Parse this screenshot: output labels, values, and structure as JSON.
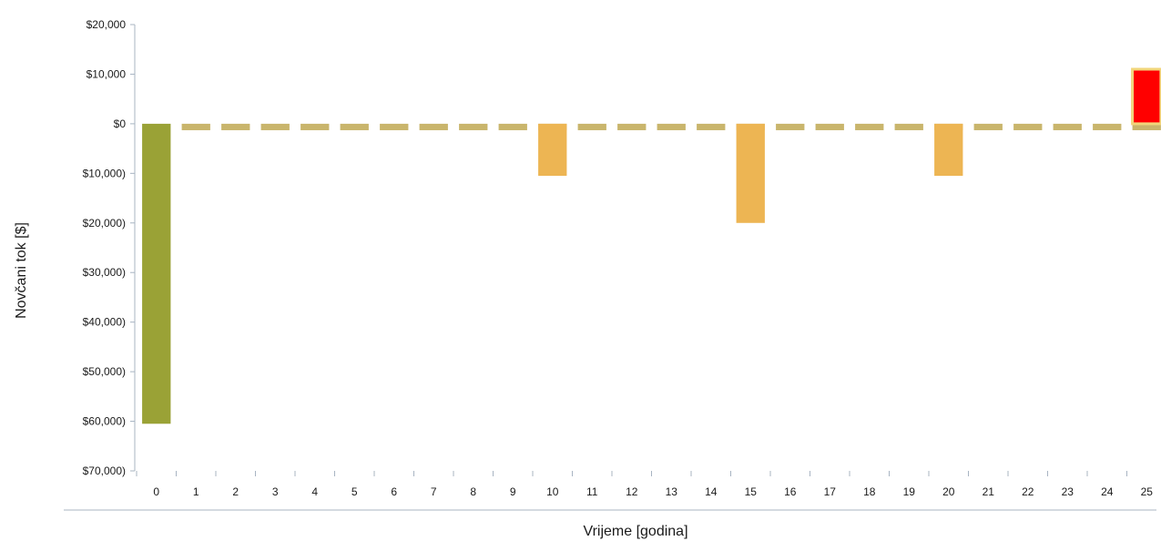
{
  "chart_data": {
    "type": "bar",
    "xlabel": "Vrijeme [godina]",
    "ylabel": "Novčani tok [$]",
    "ylim": [
      -70000,
      20000
    ],
    "yticks": [
      20000,
      10000,
      0,
      -10000,
      -20000,
      -30000,
      -40000,
      -50000,
      -60000,
      -70000
    ],
    "ytick_labels": [
      "$20,000",
      "$10,000",
      "$0",
      "$10,000)",
      "$20,000)",
      "$30,000)",
      "$40,000)",
      "$50,000)",
      "$60,000)",
      "$70,000)"
    ],
    "categories": [
      "0",
      "1",
      "2",
      "3",
      "4",
      "5",
      "6",
      "7",
      "8",
      "9",
      "10",
      "11",
      "12",
      "13",
      "14",
      "15",
      "16",
      "17",
      "18",
      "19",
      "20",
      "21",
      "22",
      "23",
      "24",
      "25"
    ],
    "series": [
      {
        "values": [
          -60500,
          0,
          0,
          0,
          0,
          0,
          0,
          0,
          0,
          0,
          0,
          0,
          0,
          0,
          0,
          0,
          0,
          0,
          0,
          0,
          0,
          0,
          0,
          0,
          0,
          0
        ],
        "color": "#9aa236"
      },
      {
        "values": [
          0,
          -1300,
          -1300,
          -1300,
          -1300,
          -1300,
          -1300,
          -1300,
          -1300,
          -1300,
          -1300,
          -1300,
          -1300,
          -1300,
          -1300,
          -1300,
          -1300,
          -1300,
          -1300,
          -1300,
          -1300,
          -1300,
          -1300,
          -1300,
          -1300,
          -1300
        ],
        "color": "#c9b56c"
      },
      {
        "values": [
          0,
          0,
          0,
          0,
          0,
          0,
          0,
          0,
          0,
          0,
          -10500,
          0,
          0,
          0,
          0,
          -20000,
          0,
          0,
          0,
          0,
          -10500,
          0,
          0,
          0,
          0,
          0
        ],
        "color": "#edb553"
      },
      {
        "values": [
          0,
          0,
          0,
          0,
          0,
          0,
          0,
          0,
          0,
          0,
          0,
          0,
          0,
          0,
          0,
          0,
          0,
          0,
          0,
          0,
          0,
          0,
          0,
          0,
          0,
          11000
        ],
        "color": "#ff0000"
      }
    ],
    "grid": false,
    "legend": "none"
  }
}
